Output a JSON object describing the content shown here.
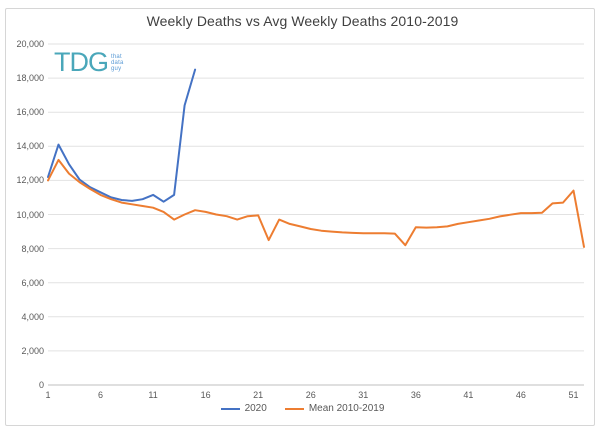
{
  "chart": {
    "logo": {
      "text": "TDG",
      "words": [
        "that",
        "data",
        "guy"
      ],
      "main_color": "#4aa7ba",
      "sub_color": "#5b9bd5"
    }
  },
  "chart_data": {
    "type": "line",
    "title": "Weekly Deaths vs Avg Weekly Deaths 2010-2019",
    "xlabel": "",
    "ylabel": "",
    "xlim": [
      1,
      52
    ],
    "ylim": [
      0,
      20000
    ],
    "grid": "horizontal",
    "legend_position": "bottom",
    "x_ticks": [
      1,
      6,
      11,
      16,
      21,
      26,
      31,
      36,
      41,
      46,
      51
    ],
    "y_ticks": [
      {
        "value": 0,
        "label": "0"
      },
      {
        "value": 2000,
        "label": "2,000"
      },
      {
        "value": 4000,
        "label": "4,000"
      },
      {
        "value": 6000,
        "label": "6,000"
      },
      {
        "value": 8000,
        "label": "8,000"
      },
      {
        "value": 10000,
        "label": "10,000"
      },
      {
        "value": 12000,
        "label": "12,000"
      },
      {
        "value": 14000,
        "label": "14,000"
      },
      {
        "value": 16000,
        "label": "16,000"
      },
      {
        "value": 18000,
        "label": "18,000"
      },
      {
        "value": 20000,
        "label": "20,000"
      }
    ],
    "series": [
      {
        "name": "2020",
        "color": "#4472c4",
        "x": [
          1,
          2,
          3,
          4,
          5,
          6,
          7,
          8,
          9,
          10,
          11,
          12,
          13,
          14,
          15
        ],
        "values": [
          12200,
          14100,
          12950,
          12050,
          11600,
          11300,
          11000,
          10850,
          10800,
          10900,
          11150,
          10750,
          11150,
          16400,
          18500
        ]
      },
      {
        "name": "Mean 2010-2019",
        "color": "#ed7d31",
        "x": [
          1,
          2,
          3,
          4,
          5,
          6,
          7,
          8,
          9,
          10,
          11,
          12,
          13,
          14,
          15,
          16,
          17,
          18,
          19,
          20,
          21,
          22,
          23,
          24,
          25,
          26,
          27,
          28,
          29,
          30,
          31,
          32,
          33,
          34,
          35,
          36,
          37,
          38,
          39,
          40,
          41,
          42,
          43,
          44,
          45,
          46,
          47,
          48,
          49,
          50,
          51,
          52
        ],
        "values": [
          12000,
          13200,
          12400,
          11900,
          11500,
          11150,
          10900,
          10700,
          10600,
          10500,
          10400,
          10150,
          9700,
          10000,
          10250,
          10150,
          10000,
          9900,
          9700,
          9900,
          9950,
          8500,
          9700,
          9450,
          9300,
          9150,
          9050,
          9000,
          8950,
          8920,
          8900,
          8900,
          8900,
          8880,
          8200,
          9250,
          9230,
          9250,
          9300,
          9450,
          9550,
          9650,
          9750,
          9890,
          9990,
          10080,
          10080,
          10100,
          10650,
          10700,
          11400,
          8100
        ]
      }
    ],
    "axis_color": "#bfbfbf",
    "gridline_color": "#e2e2e2",
    "tick_label_color": "#595959"
  }
}
